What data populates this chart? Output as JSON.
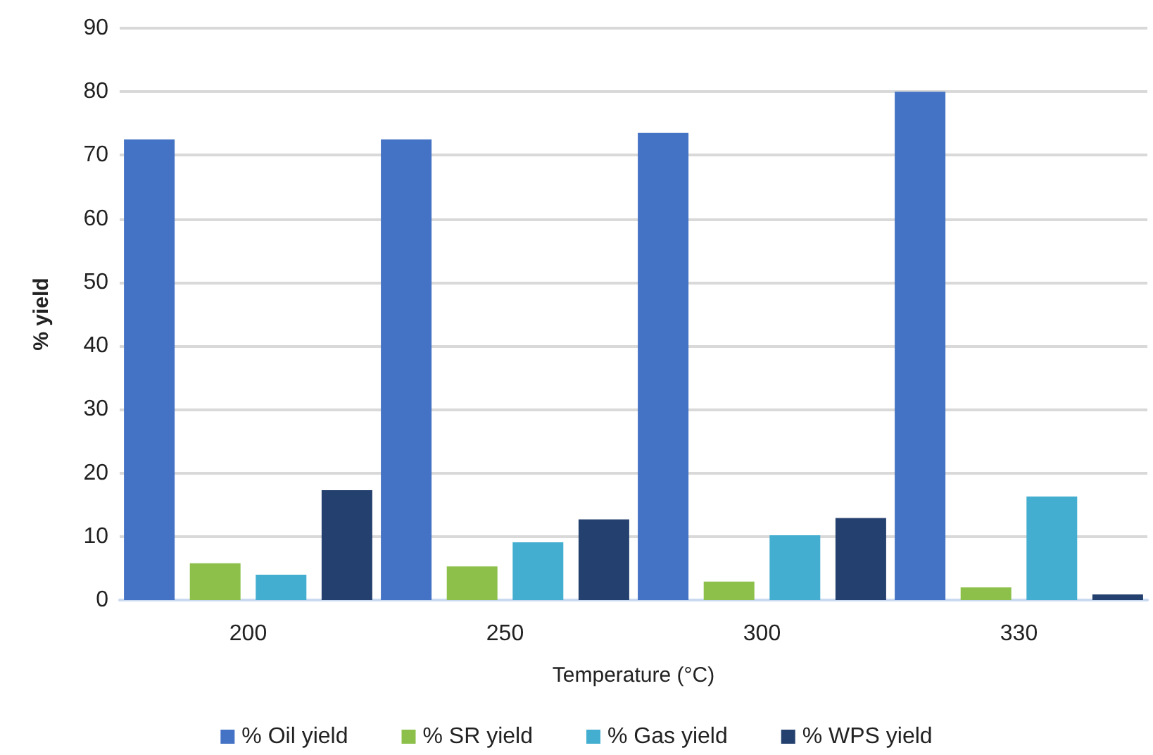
{
  "chart_data": {
    "type": "bar",
    "xlabel": "Temperature (°C)",
    "ylabel": "% yield",
    "categories": [
      "200",
      "250",
      "300",
      "330"
    ],
    "series": [
      {
        "name": "% Oil yield",
        "color": "#4472c4",
        "values": [
          72.5,
          72.5,
          73.5,
          80
        ]
      },
      {
        "name": "% SR yield",
        "color": "#8cc04b",
        "values": [
          5.8,
          5.3,
          2.9,
          2.0
        ]
      },
      {
        "name": "% Gas yield",
        "color": "#43aed0",
        "values": [
          4.0,
          9.1,
          10.2,
          16.3
        ]
      },
      {
        "name": "% WPS yield",
        "color": "#24406e",
        "values": [
          17.3,
          12.7,
          12.9,
          0.9
        ]
      }
    ],
    "ylim": [
      0,
      90
    ],
    "yticks": [
      0,
      10,
      20,
      30,
      40,
      50,
      60,
      70,
      80,
      90
    ],
    "grid": "y",
    "legend": "bottom"
  }
}
